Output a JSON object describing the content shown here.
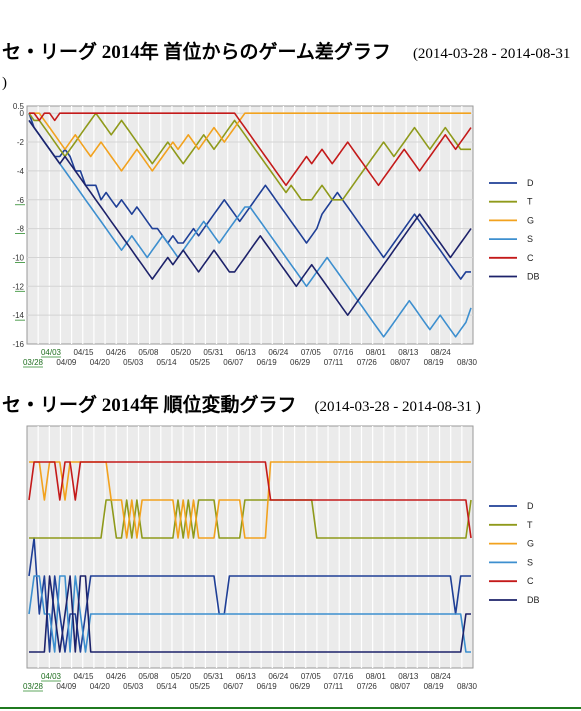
{
  "page": {
    "title1_main": "セ・リーグ 2014年 首位からのゲーム差グラフ",
    "title1_range": "(2014-03-28 - 2014-08-31 )",
    "title2_main": "セ・リーグ 2014年 順位変動グラフ",
    "title2_range": "(2014-03-28 - 2014-08-31 )"
  },
  "colors": {
    "D": "#1f3f96",
    "T": "#8f9a1b",
    "G": "#f2a21e",
    "S": "#3d8fcf",
    "C": "#c41a1a",
    "DB": "#1d226a"
  },
  "chart_data": [
    {
      "type": "line",
      "title": "セ・リーグ 2014年 首位からのゲーム差グラフ",
      "xlabel": "",
      "ylabel": "",
      "ylim": [
        -16,
        0.5
      ],
      "yticks": [
        "0.5",
        "0",
        "-2",
        "-4",
        "-6",
        "-8",
        "-10",
        "-12",
        "-14",
        "-16"
      ],
      "x_ticks_top": [
        "04/03",
        "04/15",
        "04/26",
        "05/08",
        "05/20",
        "05/31",
        "06/13",
        "06/24",
        "07/05",
        "07/16",
        "08/01",
        "08/13",
        "08/24"
      ],
      "x_ticks_bottom": [
        "03/28",
        "04/09",
        "04/20",
        "05/03",
        "05/14",
        "05/25",
        "06/07",
        "06/19",
        "06/29",
        "07/11",
        "07/26",
        "08/07",
        "08/19",
        "08/30"
      ],
      "legend_position": "right",
      "grid": true,
      "series": [
        {
          "name": "D",
          "values": [
            0,
            -1,
            -1.5,
            -2,
            -2.5,
            -3,
            -3,
            -2.5,
            -3,
            -4,
            -4,
            -5,
            -5,
            -5,
            -6,
            -5.5,
            -6,
            -6.5,
            -6,
            -6.5,
            -7,
            -6.5,
            -7,
            -7.5,
            -8,
            -8,
            -8.5,
            -9,
            -8.5,
            -9,
            -9,
            -8.5,
            -8,
            -8.5,
            -8,
            -7.5,
            -7,
            -6.5,
            -6,
            -6.5,
            -7,
            -7.5,
            -7,
            -6.5,
            -6,
            -5.5,
            -5,
            -5.5,
            -6,
            -6.5,
            -7,
            -7.5,
            -8,
            -8.5,
            -9,
            -8.5,
            -8,
            -7,
            -6.5,
            -6,
            -5.5,
            -6,
            -6.5,
            -7,
            -7.5,
            -8,
            -8.5,
            -9,
            -9.5,
            -10,
            -9.5,
            -9,
            -8.5,
            -8,
            -7.5,
            -7,
            -7.5,
            -8,
            -8.5,
            -9,
            -9.5,
            -10,
            -10.5,
            -11,
            -11.5,
            -11,
            -11
          ]
        },
        {
          "name": "T",
          "values": [
            0,
            -0.5,
            -0.5,
            -1,
            -1.5,
            -2,
            -2.5,
            -3,
            -2.5,
            -2,
            -1.5,
            -1,
            -0.5,
            0,
            -0.5,
            -1,
            -1.5,
            -1,
            -0.5,
            -1,
            -1.5,
            -2,
            -2.5,
            -3,
            -3.5,
            -3,
            -2.5,
            -2,
            -2.5,
            -3,
            -3.5,
            -3,
            -2.5,
            -2,
            -1.5,
            -2,
            -2.5,
            -2,
            -1.5,
            -1,
            -0.5,
            -1,
            -1.5,
            -2,
            -2.5,
            -3,
            -3.5,
            -4,
            -4.5,
            -5,
            -5.5,
            -5,
            -5.5,
            -6,
            -6,
            -6,
            -5.5,
            -5,
            -5.5,
            -6,
            -6,
            -6,
            -5.5,
            -5,
            -4.5,
            -4,
            -3.5,
            -3,
            -2.5,
            -2,
            -2.5,
            -3,
            -2.5,
            -2,
            -1.5,
            -1,
            -1.5,
            -2,
            -2.5,
            -2,
            -1.5,
            -1,
            -1.5,
            -2,
            -2.5,
            -2.5,
            -2.5
          ]
        },
        {
          "name": "G",
          "values": [
            0,
            0,
            0,
            -0.5,
            -1,
            -1.5,
            -2,
            -2.5,
            -2,
            -1.5,
            -2,
            -2.5,
            -3,
            -2.5,
            -2,
            -2.5,
            -3,
            -3.5,
            -4,
            -3.5,
            -3,
            -2.5,
            -3,
            -3.5,
            -4,
            -3.5,
            -3,
            -2.5,
            -2,
            -2.5,
            -2,
            -1.5,
            -2,
            -2.5,
            -2,
            -1.5,
            -1,
            -1.5,
            -2,
            -1.5,
            -1,
            -0.5,
            0,
            0,
            0,
            0,
            0,
            0,
            0,
            0,
            0,
            0,
            0,
            0,
            0,
            0,
            0,
            0,
            0,
            0,
            0,
            0,
            0,
            0,
            0,
            0,
            0,
            0,
            0,
            0,
            0,
            0,
            0,
            0,
            0,
            0,
            0,
            0,
            0,
            0,
            0,
            0,
            0,
            0,
            0,
            0,
            0
          ]
        },
        {
          "name": "S",
          "values": [
            -0.5,
            -1,
            -1.5,
            -2,
            -2.5,
            -3,
            -3.5,
            -4,
            -4.5,
            -5,
            -5.5,
            -6,
            -6.5,
            -7,
            -7.5,
            -8,
            -8.5,
            -9,
            -9.5,
            -9,
            -8.5,
            -9,
            -9.5,
            -10,
            -9.5,
            -9,
            -8.5,
            -9,
            -9.5,
            -10,
            -9.5,
            -9,
            -8.5,
            -8,
            -7.5,
            -8,
            -8.5,
            -9,
            -8.5,
            -8,
            -7.5,
            -7,
            -6.5,
            -6.5,
            -7,
            -7.5,
            -8,
            -8.5,
            -9,
            -9.5,
            -10,
            -10.5,
            -11,
            -11.5,
            -12,
            -11.5,
            -11,
            -10.5,
            -10,
            -10.5,
            -11,
            -11.5,
            -12,
            -12.5,
            -13,
            -13.5,
            -14,
            -14.5,
            -15,
            -15.5,
            -15,
            -14.5,
            -14,
            -13.5,
            -13,
            -13.5,
            -14,
            -14.5,
            -15,
            -14.5,
            -14,
            -14.5,
            -15,
            -15.5,
            -15,
            -14.5,
            -13.5
          ]
        },
        {
          "name": "C",
          "values": [
            0,
            0,
            -0.5,
            0,
            0,
            -0.5,
            0,
            0,
            0,
            0,
            0,
            0,
            0,
            0,
            0,
            0,
            0,
            0,
            0,
            0,
            0,
            0,
            0,
            0,
            0,
            0,
            0,
            0,
            0,
            0,
            0,
            0,
            0,
            0,
            0,
            0,
            0,
            0,
            0,
            0,
            0,
            -0.5,
            -1,
            -1.5,
            -2,
            -2.5,
            -3,
            -3.5,
            -4,
            -4.5,
            -5,
            -4.5,
            -4,
            -3.5,
            -3,
            -3.5,
            -3,
            -2.5,
            -3,
            -3.5,
            -3,
            -2.5,
            -2,
            -2.5,
            -3,
            -3.5,
            -4,
            -4.5,
            -5,
            -4.5,
            -4,
            -3.5,
            -3,
            -2.5,
            -3,
            -3.5,
            -4,
            -3.5,
            -3,
            -2.5,
            -2,
            -1.5,
            -2,
            -2.5,
            -2,
            -1.5,
            -1
          ]
        },
        {
          "name": "DB",
          "values": [
            -0.5,
            -1,
            -1.5,
            -2,
            -2.5,
            -3,
            -3.5,
            -3,
            -3.5,
            -4,
            -4.5,
            -5,
            -5.5,
            -6,
            -6.5,
            -7,
            -7.5,
            -8,
            -8.5,
            -9,
            -9.5,
            -10,
            -10.5,
            -11,
            -11.5,
            -11,
            -10.5,
            -10,
            -10.5,
            -10,
            -9.5,
            -10,
            -10.5,
            -11,
            -10.5,
            -10,
            -9.5,
            -10,
            -10.5,
            -11,
            -11,
            -10.5,
            -10,
            -9.5,
            -9,
            -8.5,
            -9,
            -9.5,
            -10,
            -10.5,
            -11,
            -11.5,
            -12,
            -11.5,
            -11,
            -10.5,
            -11,
            -11.5,
            -12,
            -12.5,
            -13,
            -13.5,
            -14,
            -13.5,
            -13,
            -12.5,
            -12,
            -11.5,
            -11,
            -10.5,
            -10,
            -9.5,
            -9,
            -8.5,
            -8,
            -7.5,
            -7,
            -7.5,
            -8,
            -8.5,
            -9,
            -9.5,
            -10,
            -9.5,
            -9,
            -8.5,
            -8
          ]
        }
      ]
    },
    {
      "type": "line",
      "title": "セ・リーグ 2014年 順位変動グラフ",
      "xlabel": "",
      "ylabel": "",
      "ylim": [
        1,
        6
      ],
      "x_ticks_top": [
        "04/03",
        "04/15",
        "04/26",
        "05/08",
        "05/20",
        "05/31",
        "06/13",
        "06/24",
        "07/05",
        "07/16",
        "08/01",
        "08/13",
        "08/24"
      ],
      "x_ticks_bottom": [
        "03/28",
        "04/09",
        "04/20",
        "05/03",
        "05/14",
        "05/25",
        "06/07",
        "06/19",
        "06/29",
        "07/11",
        "07/26",
        "08/07",
        "08/19",
        "08/30"
      ],
      "legend_position": "right",
      "grid": true,
      "series": [
        {
          "name": "D",
          "values": [
            4,
            3,
            5,
            4,
            6,
            4,
            5,
            6,
            5,
            5,
            6,
            5,
            4,
            4,
            4,
            4,
            4,
            4,
            4,
            4,
            4,
            4,
            4,
            4,
            4,
            4,
            4,
            4,
            4,
            4,
            4,
            4,
            4,
            4,
            4,
            4,
            4,
            5,
            5,
            4,
            4,
            4,
            4,
            4,
            4,
            4,
            4,
            4,
            4,
            4,
            4,
            4,
            4,
            4,
            4,
            4,
            4,
            4,
            4,
            4,
            4,
            4,
            4,
            4,
            4,
            4,
            4,
            4,
            4,
            4,
            4,
            4,
            4,
            4,
            4,
            4,
            4,
            4,
            4,
            4,
            4,
            4,
            4,
            5,
            4,
            4,
            4
          ]
        },
        {
          "name": "T",
          "values": [
            3,
            3,
            3,
            3,
            3,
            3,
            3,
            3,
            3,
            3,
            3,
            3,
            3,
            3,
            3,
            2,
            2,
            3,
            3,
            2,
            3,
            2,
            3,
            3,
            3,
            3,
            3,
            3,
            3,
            2,
            3,
            2,
            3,
            2,
            2,
            2,
            2,
            3,
            3,
            3,
            3,
            3,
            2,
            2,
            2,
            2,
            2,
            2,
            2,
            2,
            2,
            2,
            2,
            2,
            2,
            2,
            3,
            3,
            3,
            3,
            3,
            3,
            3,
            3,
            3,
            3,
            3,
            3,
            3,
            3,
            3,
            3,
            3,
            3,
            3,
            3,
            3,
            3,
            3,
            3,
            3,
            3,
            3,
            3,
            3,
            3,
            2
          ]
        },
        {
          "name": "G",
          "values": [
            1,
            1,
            1,
            2,
            1,
            1,
            1,
            2,
            1,
            1,
            1,
            1,
            1,
            1,
            1,
            1,
            2,
            2,
            2,
            3,
            2,
            3,
            2,
            2,
            2,
            2,
            2,
            2,
            2,
            3,
            2,
            3,
            2,
            3,
            3,
            3,
            3,
            2,
            2,
            2,
            2,
            2,
            3,
            3,
            3,
            3,
            3,
            1,
            1,
            1,
            1,
            1,
            1,
            1,
            1,
            1,
            1,
            1,
            1,
            1,
            1,
            1,
            1,
            1,
            1,
            1,
            1,
            1,
            1,
            1,
            1,
            1,
            1,
            1,
            1,
            1,
            1,
            1,
            1,
            1,
            1,
            1,
            1,
            1,
            1,
            1,
            1
          ]
        },
        {
          "name": "S",
          "values": [
            5,
            4,
            4,
            5,
            5,
            6,
            4,
            4,
            6,
            4,
            5,
            6,
            5,
            5,
            5,
            5,
            5,
            5,
            5,
            5,
            5,
            5,
            5,
            5,
            5,
            5,
            5,
            5,
            5,
            5,
            5,
            5,
            5,
            5,
            5,
            5,
            5,
            5,
            5,
            5,
            5,
            5,
            5,
            5,
            5,
            5,
            5,
            5,
            5,
            5,
            5,
            5,
            5,
            5,
            5,
            5,
            5,
            5,
            5,
            5,
            5,
            5,
            5,
            5,
            5,
            5,
            5,
            5,
            5,
            5,
            5,
            5,
            5,
            5,
            5,
            5,
            5,
            5,
            5,
            5,
            5,
            5,
            5,
            5,
            5,
            6,
            6
          ]
        },
        {
          "name": "C",
          "values": [
            2,
            1,
            1,
            1,
            1,
            1,
            2,
            1,
            1,
            2,
            1,
            1,
            1,
            1,
            1,
            1,
            1,
            1,
            1,
            1,
            1,
            1,
            1,
            1,
            1,
            1,
            1,
            1,
            1,
            1,
            1,
            1,
            1,
            1,
            1,
            1,
            1,
            1,
            1,
            1,
            1,
            1,
            1,
            1,
            1,
            1,
            1,
            2,
            2,
            2,
            2,
            2,
            2,
            2,
            2,
            2,
            2,
            2,
            2,
            2,
            2,
            2,
            2,
            2,
            2,
            2,
            2,
            2,
            2,
            2,
            2,
            2,
            2,
            2,
            2,
            2,
            2,
            2,
            2,
            2,
            2,
            2,
            2,
            2,
            2,
            2,
            3
          ]
        },
        {
          "name": "DB",
          "values": [
            6,
            6,
            6,
            6,
            4,
            5,
            6,
            5,
            4,
            6,
            4,
            4,
            6,
            6,
            6,
            6,
            6,
            6,
            6,
            6,
            6,
            6,
            6,
            6,
            6,
            6,
            6,
            6,
            6,
            6,
            6,
            6,
            6,
            6,
            6,
            6,
            6,
            6,
            6,
            6,
            6,
            6,
            6,
            6,
            6,
            6,
            6,
            6,
            6,
            6,
            6,
            6,
            6,
            6,
            6,
            6,
            6,
            6,
            6,
            6,
            6,
            6,
            6,
            6,
            6,
            6,
            6,
            6,
            6,
            6,
            6,
            6,
            6,
            6,
            6,
            6,
            6,
            6,
            6,
            6,
            6,
            6,
            6,
            6,
            6,
            5,
            5
          ]
        }
      ]
    }
  ]
}
